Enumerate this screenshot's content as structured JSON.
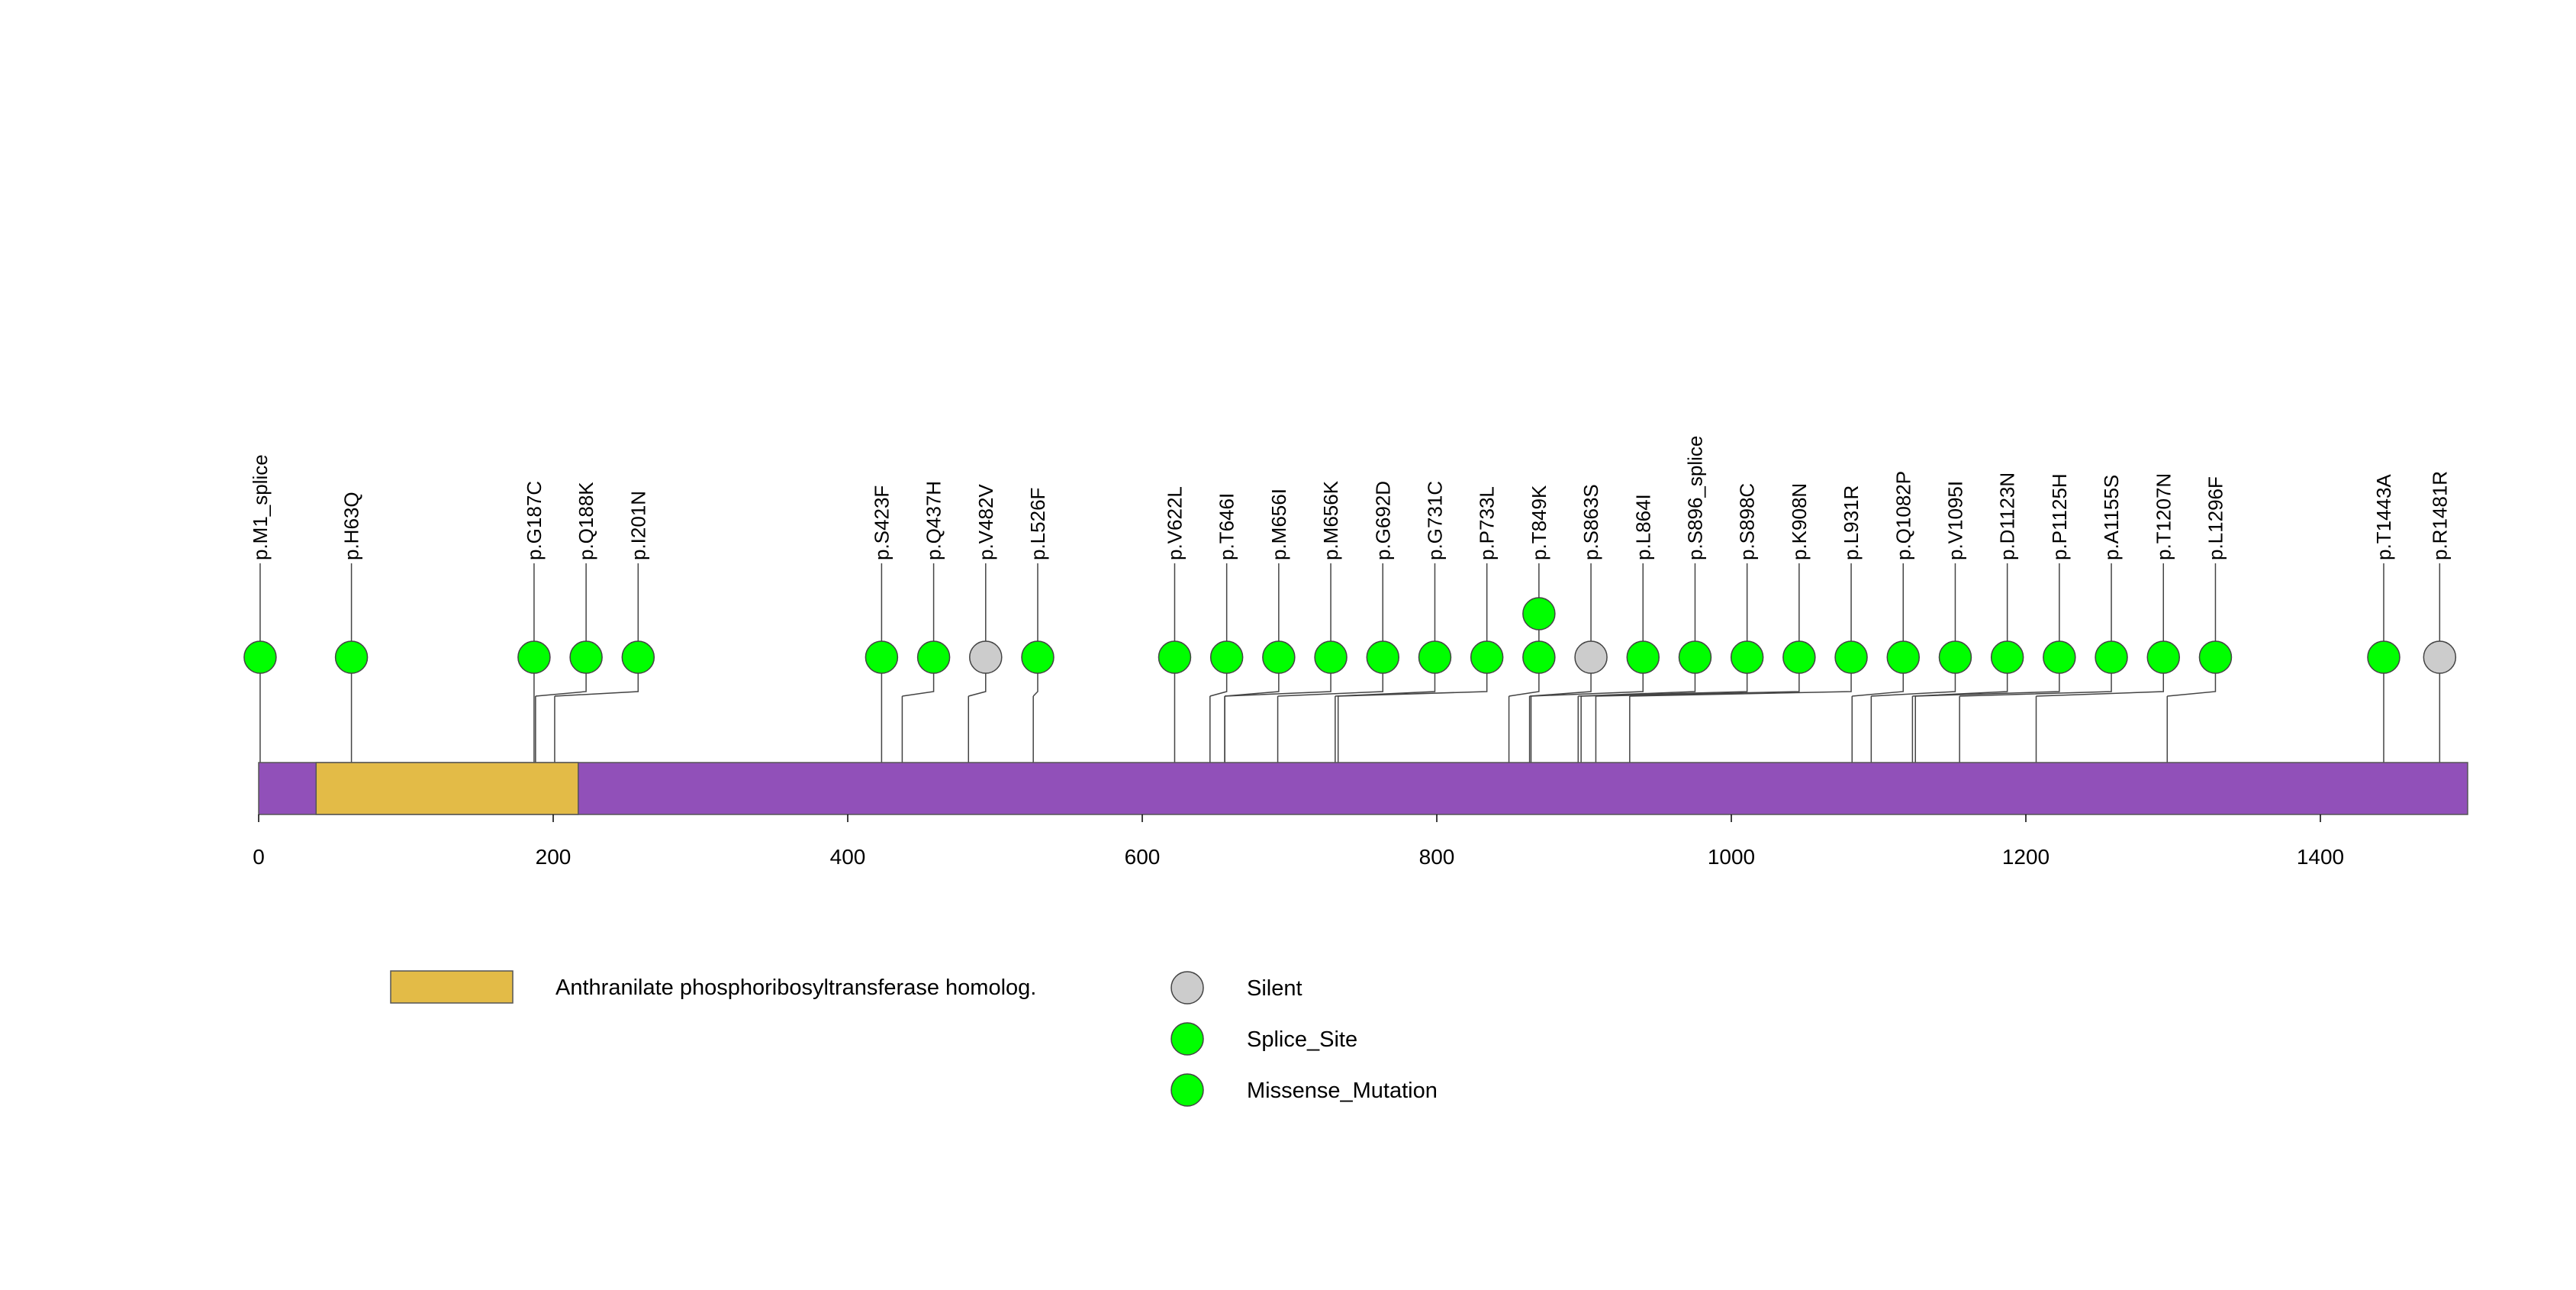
{
  "chart_data": {
    "type": "lollipop",
    "protein_length": 1500,
    "x_ticks": [
      0,
      200,
      400,
      600,
      800,
      1000,
      1200,
      1400
    ],
    "protein_color": "#9150B9",
    "domains": [
      {
        "name": "Anthranilate phosphoribosyltransferase homolog.",
        "start": 39,
        "end": 217,
        "color": "#E3BB47"
      }
    ],
    "mutation_types": {
      "Silent": "#CCCCCC",
      "Splice_Site": "#00FF00",
      "Missense_Mutation": "#00FF00"
    },
    "mutations": [
      {
        "label": "p.M1_splice",
        "position": 1,
        "type": "Splice_Site",
        "count": 1
      },
      {
        "label": "p.H63Q",
        "position": 63,
        "type": "Missense_Mutation",
        "count": 1
      },
      {
        "label": "p.G187C",
        "position": 187,
        "type": "Missense_Mutation",
        "count": 1
      },
      {
        "label": "p.Q188K",
        "position": 188,
        "type": "Missense_Mutation",
        "count": 1
      },
      {
        "label": "p.I201N",
        "position": 201,
        "type": "Missense_Mutation",
        "count": 1
      },
      {
        "label": "p.S423F",
        "position": 423,
        "type": "Missense_Mutation",
        "count": 1
      },
      {
        "label": "p.Q437H",
        "position": 437,
        "type": "Missense_Mutation",
        "count": 1
      },
      {
        "label": "p.V482V",
        "position": 482,
        "type": "Silent",
        "count": 1
      },
      {
        "label": "p.L526F",
        "position": 526,
        "type": "Missense_Mutation",
        "count": 1
      },
      {
        "label": "p.V622L",
        "position": 622,
        "type": "Missense_Mutation",
        "count": 1
      },
      {
        "label": "p.T646I",
        "position": 646,
        "type": "Missense_Mutation",
        "count": 1
      },
      {
        "label": "p.M656I",
        "position": 656,
        "type": "Missense_Mutation",
        "count": 1
      },
      {
        "label": "p.M656K",
        "position": 656,
        "type": "Missense_Mutation",
        "count": 1
      },
      {
        "label": "p.G692D",
        "position": 692,
        "type": "Missense_Mutation",
        "count": 1
      },
      {
        "label": "p.G731C",
        "position": 731,
        "type": "Missense_Mutation",
        "count": 1
      },
      {
        "label": "p.P733L",
        "position": 733,
        "type": "Missense_Mutation",
        "count": 1
      },
      {
        "label": "p.T849K",
        "position": 849,
        "type": "Missense_Mutation",
        "count": 2
      },
      {
        "label": "p.S863S",
        "position": 863,
        "type": "Silent",
        "count": 1
      },
      {
        "label": "p.L864I",
        "position": 864,
        "type": "Missense_Mutation",
        "count": 1
      },
      {
        "label": "p.S896_splice",
        "position": 896,
        "type": "Splice_Site",
        "count": 1
      },
      {
        "label": "p.S898C",
        "position": 898,
        "type": "Missense_Mutation",
        "count": 1
      },
      {
        "label": "p.K908N",
        "position": 908,
        "type": "Missense_Mutation",
        "count": 1
      },
      {
        "label": "p.L931R",
        "position": 931,
        "type": "Missense_Mutation",
        "count": 1
      },
      {
        "label": "p.Q1082P",
        "position": 1082,
        "type": "Missense_Mutation",
        "count": 1
      },
      {
        "label": "p.V1095I",
        "position": 1095,
        "type": "Missense_Mutation",
        "count": 1
      },
      {
        "label": "p.D1123N",
        "position": 1123,
        "type": "Missense_Mutation",
        "count": 1
      },
      {
        "label": "p.P1125H",
        "position": 1125,
        "type": "Missense_Mutation",
        "count": 1
      },
      {
        "label": "p.A1155S",
        "position": 1155,
        "type": "Missense_Mutation",
        "count": 1
      },
      {
        "label": "p.T1207N",
        "position": 1207,
        "type": "Missense_Mutation",
        "count": 1
      },
      {
        "label": "p.L1296F",
        "position": 1296,
        "type": "Missense_Mutation",
        "count": 1
      },
      {
        "label": "p.T1443A",
        "position": 1443,
        "type": "Missense_Mutation",
        "count": 1
      },
      {
        "label": "p.R1481R",
        "position": 1481,
        "type": "Silent",
        "count": 1
      }
    ],
    "legend": [
      {
        "kind": "domain",
        "label": "Anthranilate phosphoribosyltransferase homolog.",
        "color": "#E3BB47"
      },
      {
        "kind": "mutation",
        "label": "Silent",
        "color": "#CCCCCC"
      },
      {
        "kind": "mutation",
        "label": "Splice_Site",
        "color": "#00FF00"
      },
      {
        "kind": "mutation",
        "label": "Missense_Mutation",
        "color": "#00FF00"
      }
    ]
  }
}
